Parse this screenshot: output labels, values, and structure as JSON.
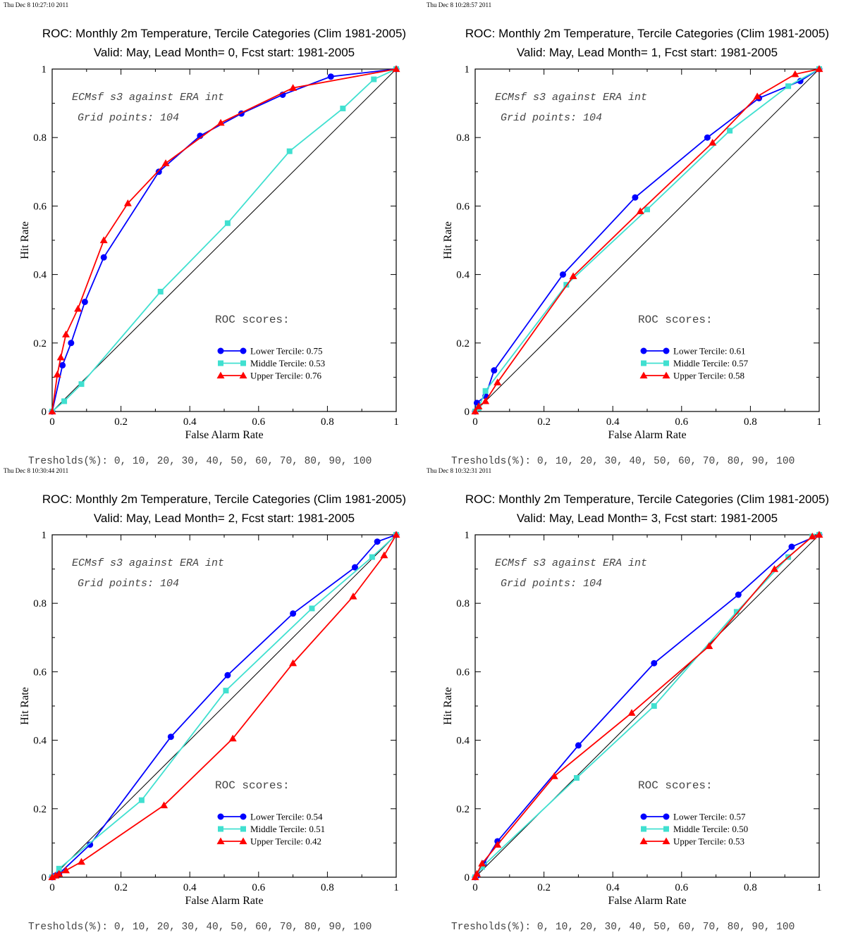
{
  "chart_data": [
    {
      "type": "line",
      "timestamp": "Thu Dec  8 10:27:10 2011",
      "title": "ROC: Monthly 2m Temperature, Tercile Categories (Clim 1981-2005)",
      "subtitle": "Valid: May, Lead Month= 0, Fcst start: 1981-2005",
      "xlabel": "False Alarm Rate",
      "ylabel": "Hit Rate",
      "xlim": [
        0,
        1
      ],
      "ylim": [
        0,
        1
      ],
      "x_ticks": [
        "0",
        "0.2",
        "0.4",
        "0.6",
        "0.8",
        "1"
      ],
      "y_ticks": [
        "0",
        "0.2",
        "0.4",
        "0.6",
        "0.8",
        "1"
      ],
      "annotations": [
        "ECMsf s3 against ERA int",
        "Grid points:  104"
      ],
      "legend_title": "ROC scores:",
      "thresholds": "Tresholds(%): 0, 10, 20, 30, 40, 50, 60, 70, 80, 90, 100",
      "series": [
        {
          "name": "Lower Tercile: 0.75",
          "color": "#0000ff",
          "marker": "circle",
          "points": [
            [
              0,
              0
            ],
            [
              0.03,
              0.135
            ],
            [
              0.055,
              0.2
            ],
            [
              0.095,
              0.32
            ],
            [
              0.15,
              0.45
            ],
            [
              0.31,
              0.7
            ],
            [
              0.43,
              0.805
            ],
            [
              0.55,
              0.87
            ],
            [
              0.67,
              0.925
            ],
            [
              0.81,
              0.978
            ],
            [
              1,
              1
            ]
          ]
        },
        {
          "name": "Middle Tercile: 0.53",
          "color": "#40e0d0",
          "marker": "square",
          "points": [
            [
              0,
              0
            ],
            [
              0.035,
              0.03
            ],
            [
              0.085,
              0.08
            ],
            [
              0.315,
              0.35
            ],
            [
              0.51,
              0.55
            ],
            [
              0.69,
              0.76
            ],
            [
              0.845,
              0.885
            ],
            [
              0.935,
              0.97
            ],
            [
              1,
              1
            ]
          ]
        },
        {
          "name": "Upper Tercile: 0.76",
          "color": "#ff0000",
          "marker": "triangle",
          "points": [
            [
              0,
              0
            ],
            [
              0.015,
              0.108
            ],
            [
              0.025,
              0.158
            ],
            [
              0.04,
              0.225
            ],
            [
              0.075,
              0.3
            ],
            [
              0.15,
              0.5
            ],
            [
              0.22,
              0.608
            ],
            [
              0.33,
              0.725
            ],
            [
              0.49,
              0.843
            ],
            [
              0.7,
              0.945
            ],
            [
              1,
              1
            ]
          ]
        }
      ]
    },
    {
      "type": "line",
      "timestamp": "Thu Dec  8 10:28:57 2011",
      "title": "ROC: Monthly 2m Temperature, Tercile Categories (Clim 1981-2005)",
      "subtitle": "Valid: May, Lead Month= 1, Fcst start: 1981-2005",
      "xlabel": "False Alarm Rate",
      "ylabel": "Hit Rate",
      "xlim": [
        0,
        1
      ],
      "ylim": [
        0,
        1
      ],
      "x_ticks": [
        "0",
        "0.2",
        "0.4",
        "0.6",
        "0.8",
        "1"
      ],
      "y_ticks": [
        "0",
        "0.2",
        "0.4",
        "0.6",
        "0.8",
        "1"
      ],
      "annotations": [
        "ECMsf s3 against ERA int",
        "Grid points:  104"
      ],
      "legend_title": "ROC scores:",
      "thresholds": "Tresholds(%): 0, 10, 20, 30, 40, 50, 60, 70, 80, 90, 100",
      "series": [
        {
          "name": "Lower Tercile: 0.61",
          "color": "#0000ff",
          "marker": "circle",
          "points": [
            [
              0,
              0
            ],
            [
              0.005,
              0.025
            ],
            [
              0.03,
              0.045
            ],
            [
              0.055,
              0.12
            ],
            [
              0.255,
              0.4
            ],
            [
              0.465,
              0.625
            ],
            [
              0.675,
              0.8
            ],
            [
              0.825,
              0.915
            ],
            [
              0.945,
              0.965
            ],
            [
              1,
              1
            ]
          ]
        },
        {
          "name": "Middle Tercile: 0.57",
          "color": "#40e0d0",
          "marker": "square",
          "points": [
            [
              0,
              0
            ],
            [
              0.01,
              0.01
            ],
            [
              0.03,
              0.06
            ],
            [
              0.265,
              0.37
            ],
            [
              0.5,
              0.59
            ],
            [
              0.74,
              0.82
            ],
            [
              0.91,
              0.95
            ],
            [
              1,
              1
            ]
          ]
        },
        {
          "name": "Upper Tercile: 0.58",
          "color": "#ff0000",
          "marker": "triangle",
          "points": [
            [
              0,
              0
            ],
            [
              0.01,
              0.015
            ],
            [
              0.03,
              0.03
            ],
            [
              0.065,
              0.085
            ],
            [
              0.285,
              0.395
            ],
            [
              0.48,
              0.585
            ],
            [
              0.69,
              0.785
            ],
            [
              0.82,
              0.92
            ],
            [
              0.93,
              0.985
            ],
            [
              1,
              1
            ]
          ]
        }
      ]
    },
    {
      "type": "line",
      "timestamp": "Thu Dec  8 10:30:44 2011",
      "title": "ROC: Monthly 2m Temperature, Tercile Categories (Clim 1981-2005)",
      "subtitle": "Valid: May, Lead Month= 2, Fcst start: 1981-2005",
      "xlabel": "False Alarm Rate",
      "ylabel": "Hit Rate",
      "xlim": [
        0,
        1
      ],
      "ylim": [
        0,
        1
      ],
      "x_ticks": [
        "0",
        "0.2",
        "0.4",
        "0.6",
        "0.8",
        "1"
      ],
      "y_ticks": [
        "0",
        "0.2",
        "0.4",
        "0.6",
        "0.8",
        "1"
      ],
      "annotations": [
        "ECMsf s3 against ERA int",
        "Grid points:  104"
      ],
      "legend_title": "ROC scores:",
      "thresholds": "Tresholds(%): 0, 10, 20, 30, 40, 50, 60, 70, 80, 90, 100",
      "series": [
        {
          "name": "Lower Tercile: 0.54",
          "color": "#0000ff",
          "marker": "circle",
          "points": [
            [
              0,
              0
            ],
            [
              0.01,
              0.005
            ],
            [
              0.02,
              0.01
            ],
            [
              0.11,
              0.095
            ],
            [
              0.345,
              0.41
            ],
            [
              0.51,
              0.59
            ],
            [
              0.7,
              0.77
            ],
            [
              0.88,
              0.905
            ],
            [
              0.945,
              0.98
            ],
            [
              1,
              1
            ]
          ]
        },
        {
          "name": "Middle Tercile: 0.51",
          "color": "#40e0d0",
          "marker": "square",
          "points": [
            [
              0,
              0
            ],
            [
              0.02,
              0.025
            ],
            [
              0.26,
              0.225
            ],
            [
              0.505,
              0.545
            ],
            [
              0.755,
              0.785
            ],
            [
              0.93,
              0.935
            ],
            [
              1,
              1
            ]
          ]
        },
        {
          "name": "Upper Tercile: 0.42",
          "color": "#ff0000",
          "marker": "triangle",
          "points": [
            [
              0,
              0
            ],
            [
              0.01,
              0.005
            ],
            [
              0.02,
              0.01
            ],
            [
              0.04,
              0.02
            ],
            [
              0.085,
              0.045
            ],
            [
              0.325,
              0.21
            ],
            [
              0.525,
              0.405
            ],
            [
              0.7,
              0.625
            ],
            [
              0.875,
              0.82
            ],
            [
              0.965,
              0.94
            ],
            [
              1,
              1
            ]
          ]
        }
      ]
    },
    {
      "type": "line",
      "timestamp": "Thu Dec  8 10:32:31 2011",
      "title": "ROC: Monthly 2m Temperature, Tercile Categories (Clim 1981-2005)",
      "subtitle": "Valid: May, Lead Month= 3, Fcst start: 1981-2005",
      "xlabel": "False Alarm Rate",
      "ylabel": "Hit Rate",
      "xlim": [
        0,
        1
      ],
      "ylim": [
        0,
        1
      ],
      "x_ticks": [
        "0",
        "0.2",
        "0.4",
        "0.6",
        "0.8",
        "1"
      ],
      "y_ticks": [
        "0",
        "0.2",
        "0.4",
        "0.6",
        "0.8",
        "1"
      ],
      "annotations": [
        "ECMsf s3 against ERA int",
        "Grid points:  104"
      ],
      "legend_title": "ROC scores:",
      "thresholds": "Tresholds(%): 0, 10, 20, 30, 40, 50, 60, 70, 80, 90, 100",
      "series": [
        {
          "name": "Lower Tercile: 0.57",
          "color": "#0000ff",
          "marker": "circle",
          "points": [
            [
              0,
              0
            ],
            [
              0.005,
              0.005
            ],
            [
              0.025,
              0.04
            ],
            [
              0.065,
              0.105
            ],
            [
              0.3,
              0.385
            ],
            [
              0.52,
              0.625
            ],
            [
              0.765,
              0.825
            ],
            [
              0.92,
              0.965
            ],
            [
              1,
              1
            ]
          ]
        },
        {
          "name": "Middle Tercile: 0.50",
          "color": "#40e0d0",
          "marker": "square",
          "points": [
            [
              0,
              0
            ],
            [
              0.02,
              0.03
            ],
            [
              0.295,
              0.29
            ],
            [
              0.52,
              0.5
            ],
            [
              0.76,
              0.775
            ],
            [
              0.91,
              0.935
            ],
            [
              0.98,
              0.995
            ],
            [
              1,
              1
            ]
          ]
        },
        {
          "name": "Upper Tercile: 0.53",
          "color": "#ff0000",
          "marker": "triangle",
          "points": [
            [
              0,
              0
            ],
            [
              0.005,
              0.01
            ],
            [
              0.02,
              0.04
            ],
            [
              0.065,
              0.095
            ],
            [
              0.23,
              0.295
            ],
            [
              0.455,
              0.48
            ],
            [
              0.68,
              0.675
            ],
            [
              0.87,
              0.9
            ],
            [
              0.98,
              0.995
            ],
            [
              1,
              1
            ]
          ]
        }
      ]
    }
  ]
}
